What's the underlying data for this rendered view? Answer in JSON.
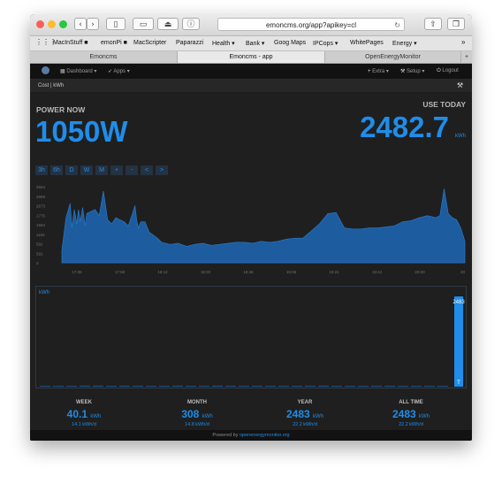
{
  "browser": {
    "url": "emoncms.org/app?apikey=cl",
    "bookmarks": [
      "MacInStuff ■",
      "emonPi ■",
      "MacScripter",
      "Paparazzi",
      "Health ▾",
      "Bank ▾",
      "Goog Maps",
      "IPCops ▾",
      "WhitePages",
      "Energy ▾"
    ],
    "more": "»",
    "tabs": [
      "Emoncms",
      "Emoncms - app",
      "OpenEnergyMonitor"
    ],
    "new_tab": "+"
  },
  "app_nav": {
    "dashboard": "Dashboard ▾",
    "apps": "Apps ▾",
    "extra": "Extra ▾",
    "setup": "Setup ▾",
    "logout": "Logout"
  },
  "subbar": {
    "title": "Cost | kWh"
  },
  "power_now": {
    "label": "POWER NOW",
    "value": "1050W"
  },
  "use_today": {
    "label": "USE TODAY",
    "value": "2482.7",
    "unit": "kWh"
  },
  "range_buttons": [
    "3h",
    "6h",
    "D",
    "W",
    "M",
    "+",
    "-",
    "<",
    ">"
  ],
  "colors": {
    "accent": "#1f8de9",
    "bar": "#1d5c9e",
    "background": "#1f1f1f"
  },
  "chart_data": [
    {
      "type": "area",
      "y_ticks": [
        "3564",
        "2969",
        "2673",
        "1776",
        "1584",
        "1184",
        "592",
        "592",
        "0"
      ],
      "x_ticks": [
        "17:36",
        "17:58",
        "18:12",
        "18:30",
        "18:48",
        "19:06",
        "19:24",
        "19:42",
        "20:00",
        "20"
      ],
      "x": [
        0,
        5,
        10,
        12,
        15,
        18,
        20,
        22,
        25,
        28,
        30,
        35,
        40,
        45,
        50,
        55,
        60,
        65,
        70,
        75,
        80,
        85,
        88,
        90,
        92,
        95,
        100,
        105,
        110,
        115,
        120,
        130,
        140,
        150,
        160,
        170,
        180,
        190,
        200,
        210,
        220,
        230,
        240,
        250,
        260,
        270,
        280,
        290,
        300,
        310,
        320,
        330,
        340,
        350,
        360,
        370,
        380,
        390,
        400,
        410,
        420,
        430,
        440,
        450,
        455,
        460,
        465,
        470,
        475,
        480,
        485
      ],
      "values": [
        600,
        2200,
        2900,
        1700,
        2600,
        1900,
        2600,
        2000,
        2700,
        1800,
        2400,
        2500,
        2600,
        2300,
        3500,
        2100,
        1900,
        2200,
        2100,
        2000,
        1800,
        2400,
        2800,
        2100,
        1700,
        2000,
        2000,
        1500,
        1350,
        1200,
        1000,
        900,
        950,
        800,
        900,
        950,
        850,
        900,
        950,
        1000,
        1000,
        950,
        1050,
        1000,
        1050,
        1150,
        1200,
        1200,
        1550,
        1900,
        2400,
        2450,
        1700,
        1650,
        1650,
        1700,
        1700,
        1750,
        1800,
        2000,
        2050,
        2200,
        2300,
        2200,
        2300,
        3600,
        2400,
        2200,
        2100,
        1700,
        1050
      ]
    },
    {
      "type": "bar",
      "ylabel": "kWh",
      "values": [
        20,
        25,
        22,
        28,
        30,
        24,
        26,
        27,
        21,
        23,
        29,
        25,
        24,
        28,
        26,
        22,
        27,
        25,
        24,
        23,
        26,
        28,
        25,
        22,
        24,
        27,
        26,
        25,
        23,
        24,
        22,
        2483
      ],
      "data_label": "2483",
      "last_bar_marker": "T"
    }
  ],
  "stats": [
    {
      "label": "WEEK",
      "value": "40.1",
      "unit": "kWh",
      "daily": "14.1 kWh/d"
    },
    {
      "label": "MONTH",
      "value": "308",
      "unit": "kWh",
      "daily": "14.8 kWh/d"
    },
    {
      "label": "YEAR",
      "value": "2483",
      "unit": "kWh",
      "daily": "22.2 kWh/d"
    },
    {
      "label": "ALL TIME",
      "value": "2483",
      "unit": "kWh",
      "daily": "22.2 kWh/d"
    }
  ],
  "footer": {
    "text": "Powered by",
    "link": "openenergymonitor.org"
  }
}
